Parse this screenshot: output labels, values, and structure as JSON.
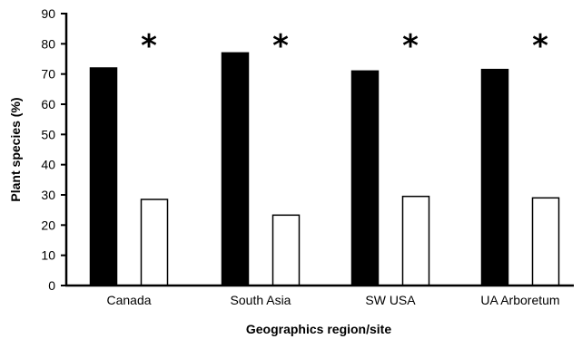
{
  "chart_data": {
    "type": "bar",
    "title": "",
    "xlabel": "Geographics region/site",
    "ylabel": "Plant species (%)",
    "ylim": [
      0,
      90
    ],
    "yticks": [
      0,
      10,
      20,
      30,
      40,
      50,
      60,
      70,
      80,
      90
    ],
    "categories": [
      "Canada",
      "South Asia",
      "SW USA",
      "UA Arboretum"
    ],
    "series": [
      {
        "values": [
          72,
          77,
          71,
          71.5
        ],
        "color": "#000000"
      },
      {
        "values": [
          28.5,
          23.3,
          29.5,
          29
        ],
        "color": "#ffffff"
      }
    ],
    "annotations": [
      "*",
      "*",
      "*",
      "*"
    ],
    "grid": false,
    "legend": "none"
  }
}
